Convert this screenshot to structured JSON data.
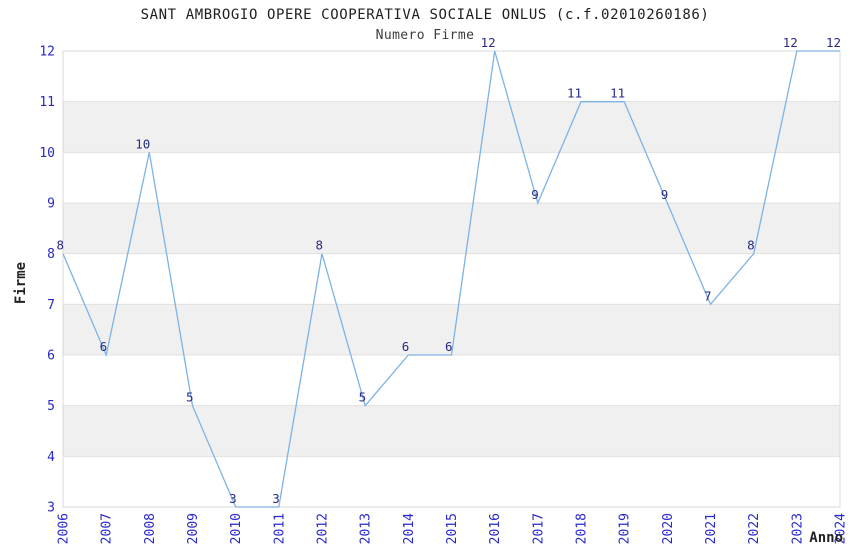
{
  "chart_data": {
    "type": "line",
    "title": "SANT AMBROGIO OPERE COOPERATIVA SOCIALE ONLUS (c.f.02010260186)",
    "subtitle": "Numero Firme",
    "xlabel": "Anno",
    "ylabel": "Firme",
    "categories": [
      "2006",
      "2007",
      "2008",
      "2009",
      "2010",
      "2011",
      "2012",
      "2013",
      "2014",
      "2015",
      "2016",
      "2017",
      "2018",
      "2019",
      "2020",
      "2021",
      "2022",
      "2023",
      "2024"
    ],
    "values": [
      8,
      6,
      10,
      5,
      3,
      3,
      8,
      5,
      6,
      6,
      12,
      9,
      11,
      11,
      9,
      7,
      8,
      12,
      12
    ],
    "ylim": [
      3,
      12
    ],
    "ytick_step": 1,
    "xtick_rotation": -90,
    "grid": true,
    "band_alternating": true,
    "legend_position": "none",
    "point_labels_visible": true
  },
  "colors": {
    "line": "#7db3e4",
    "tick_label": "#2828cc",
    "data_label": "#2a2a85",
    "band": "#f0f0f0",
    "grid": "#e0e0e0",
    "plot_border": "#d8d8d8",
    "title": "#202020",
    "subtitle": "#3c3c3c",
    "axis_title": "#222222",
    "background": "#ffffff"
  }
}
